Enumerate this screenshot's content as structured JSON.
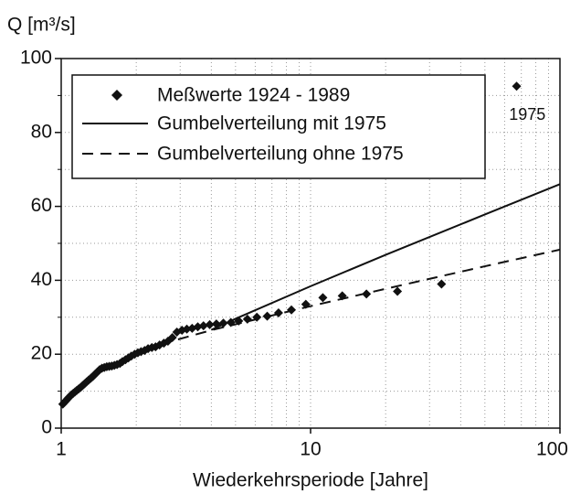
{
  "chart_data": {
    "type": "scatter",
    "ylabel": "Q [m³/s]",
    "xlabel": "Wiederkehrsperiode [Jahre]",
    "xscale": "log",
    "xlim": [
      1,
      100
    ],
    "xticks": [
      1,
      10,
      100
    ],
    "xminor": [
      2,
      3,
      4,
      5,
      6,
      7,
      8,
      9,
      20,
      30,
      40,
      50,
      60,
      70,
      80,
      90
    ],
    "ylim": [
      0,
      100
    ],
    "yticks": [
      0,
      20,
      40,
      60,
      80,
      100
    ],
    "yminor": [
      10,
      30,
      50,
      70,
      90
    ],
    "grid": true,
    "legend": "upper left",
    "series": [
      {
        "name": "Meßwerte 1924 - 1989",
        "style": "marker",
        "color": "#111111",
        "x": [
          1.015,
          1.031,
          1.047,
          1.063,
          1.081,
          1.098,
          1.117,
          1.136,
          1.155,
          1.175,
          1.196,
          1.218,
          1.241,
          1.264,
          1.288,
          1.314,
          1.34,
          1.367,
          1.396,
          1.426,
          1.457,
          1.489,
          1.523,
          1.558,
          1.595,
          1.634,
          1.675,
          1.72,
          1.76,
          1.81,
          1.86,
          1.91,
          1.97,
          2.03,
          2.09,
          2.16,
          2.23,
          2.31,
          2.39,
          2.48,
          2.58,
          2.68,
          2.79,
          2.91,
          3.05,
          3.19,
          3.35,
          3.53,
          3.72,
          3.94,
          4.19,
          4.47,
          4.79,
          5.15,
          5.58,
          6.09,
          6.7,
          7.44,
          8.38,
          9.57,
          11.2,
          13.4,
          16.75,
          22.3,
          33.5,
          67
        ],
        "values": [
          6.5,
          7,
          7.5,
          8,
          8.5,
          9,
          9.4,
          9.8,
          10.2,
          10.6,
          11,
          11.5,
          12,
          12.5,
          13,
          13.5,
          14,
          14.6,
          15.2,
          15.8,
          16.2,
          16.4,
          16.6,
          16.7,
          16.8,
          17,
          17.2,
          17.5,
          18,
          18.5,
          19,
          19.5,
          20,
          20.4,
          20.7,
          21,
          21.5,
          21.8,
          22,
          22.5,
          23,
          23.5,
          24.5,
          26,
          26.5,
          26.8,
          27,
          27.4,
          27.7,
          28,
          28.2,
          28.4,
          28.6,
          29,
          29.5,
          30,
          30.3,
          31.2,
          32,
          33.5,
          35.3,
          35.8,
          36.3,
          37,
          39,
          92.5
        ]
      },
      {
        "name": "Gumbelverteilung mit 1975",
        "style": "solid",
        "color": "#111111",
        "x": [
          4,
          5,
          10,
          20,
          50,
          100
        ],
        "values": [
          26.6,
          29.6,
          38.4,
          46.9,
          57.8,
          66.0
        ]
      },
      {
        "name": "Gumbelverteilung ohne 1975",
        "style": "dashed",
        "color": "#111111",
        "x": [
          2.5,
          4,
          5,
          10,
          20,
          50,
          100
        ],
        "values": [
          22.7,
          26.5,
          28.1,
          33,
          37.7,
          43.8,
          48.3
        ]
      }
    ],
    "annotations": [
      {
        "text": "1975",
        "x": 74,
        "y": 84.6
      }
    ]
  }
}
